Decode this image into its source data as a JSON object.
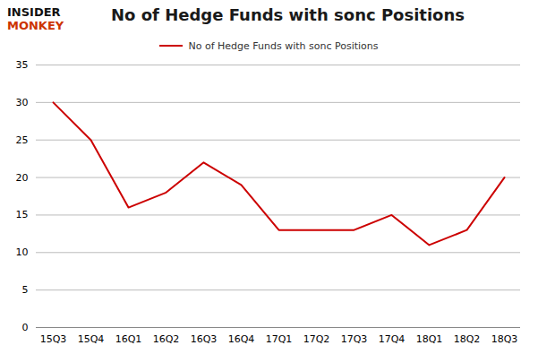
{
  "chart_data": {
    "type": "line",
    "title": "No of Hedge Funds with sonc Positions",
    "annotations": [
      "INSIDER",
      "MONKEY"
    ],
    "categories": [
      "15Q3",
      "15Q4",
      "16Q1",
      "16Q2",
      "16Q3",
      "16Q4",
      "17Q1",
      "17Q2",
      "17Q3",
      "17Q4",
      "18Q1",
      "18Q2",
      "18Q3"
    ],
    "series": [
      {
        "name": "No of Hedge Funds with sonc Positions",
        "color": "#cc0000",
        "values": [
          30,
          25,
          16,
          18,
          22,
          19,
          13,
          13,
          13,
          15,
          11,
          13,
          20
        ]
      }
    ],
    "ylim": [
      0,
      35
    ],
    "yticks": [
      0,
      5,
      10,
      15,
      20,
      25,
      30,
      35
    ],
    "grid": true,
    "legend": "top"
  }
}
